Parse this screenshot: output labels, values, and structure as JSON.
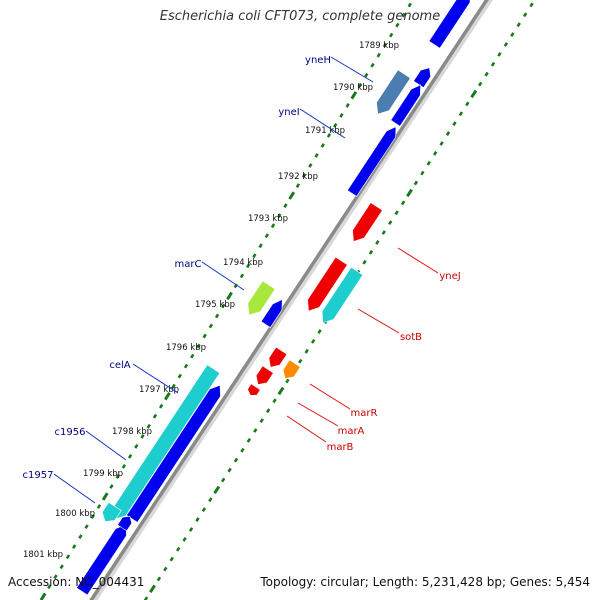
{
  "title": "Escherichia coli CFT073, complete genome",
  "footer": {
    "accession": "Accession: NC_004431",
    "summary": "Topology: circular; Length: 5,231,428 bp; Genes: 5,454"
  },
  "colors": {
    "backbone": "#8a8a8a",
    "ticks": "#1a7a1a",
    "cds": "#0000ee",
    "cds_cyan": "#1ecece",
    "cds_red": "#ee0000",
    "cds_orange": "#ff8c00",
    "cds_lime": "#a8e83a",
    "cds_steel": "#4a7eb0",
    "label_blue": "#000080",
    "label_red": "#cc0000"
  },
  "map": {
    "kbp_labels": [
      "1789 kbp",
      "1790 kbp",
      "1791 kbp",
      "1792 kbp",
      "1793 kbp",
      "1794 kbp",
      "1795 kbp",
      "1796 kbp",
      "1797 kbp",
      "1798 kbp",
      "1799 kbp",
      "1800 kbp",
      "1801 kbp"
    ],
    "left_gene_labels": [
      "yneH",
      "yneI",
      "marC",
      "celA",
      "c1956",
      "c1957"
    ],
    "right_gene_labels": [
      "yneJ",
      "sotB",
      "marR",
      "marA",
      "marB"
    ]
  }
}
